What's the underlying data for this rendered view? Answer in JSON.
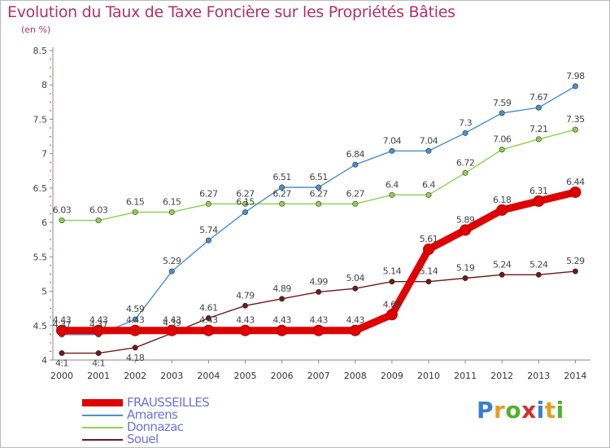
{
  "chart_data": {
    "type": "line",
    "title": "Evolution du Taux de Taxe Foncière sur les Propriétés Bâties",
    "unit_label": "(en %)",
    "x": [
      "2000",
      "2001",
      "2002",
      "2003",
      "2004",
      "2005",
      "2006",
      "2007",
      "2008",
      "2009",
      "2010",
      "2011",
      "2012",
      "2013",
      "2014"
    ],
    "ylim": [
      4,
      8.5
    ],
    "yticks": [
      "4",
      "4.5",
      "5",
      "5.5",
      "6",
      "6.5",
      "7",
      "7.5",
      "8",
      "8.5"
    ],
    "grid": false,
    "legend_position": "bottom-left",
    "series": [
      {
        "name": "FRAUSSEILLES",
        "color": "#e00000",
        "values": [
          4.43,
          4.43,
          4.43,
          4.43,
          4.43,
          4.43,
          4.43,
          4.43,
          4.43,
          4.66,
          5.61,
          5.89,
          6.18,
          6.31,
          6.44
        ],
        "labels": [
          "4.43",
          "4.43",
          "4.43",
          "4.43",
          "4.43",
          "4.43",
          "4.43",
          "4.43",
          "4.43",
          "4.66",
          "5.61",
          "5.89",
          "6.18",
          "6.31",
          "6.44"
        ]
      },
      {
        "name": "Amarens",
        "color": "#4a90c8",
        "values": [
          4.37,
          4.37,
          4.59,
          5.29,
          5.74,
          6.15,
          6.51,
          6.51,
          6.84,
          7.04,
          7.04,
          7.3,
          7.59,
          7.67,
          7.98
        ],
        "labels": [
          "4.37",
          "4.37",
          "4.59",
          "5.29",
          "5.74",
          "6.15",
          "6.51",
          "6.51",
          "6.84",
          "7.04",
          "7.04",
          "7.3",
          "7.59",
          "7.67",
          "7.98"
        ]
      },
      {
        "name": "Donnazac",
        "color": "#8dd050",
        "values": [
          6.03,
          6.03,
          6.15,
          6.15,
          6.27,
          6.27,
          6.27,
          6.27,
          6.27,
          6.4,
          6.4,
          6.72,
          7.06,
          7.21,
          7.35
        ],
        "labels": [
          "6.03",
          "6.03",
          "6.15",
          "6.15",
          "6.27",
          "6.27",
          "6.27",
          "6.27",
          "6.27",
          "6.4",
          "6.4",
          "6.72",
          "7.06",
          "7.21",
          "7.35"
        ]
      },
      {
        "name": "Souel",
        "color": "#6b1a1a",
        "values": [
          4.1,
          4.1,
          4.18,
          4.39,
          4.61,
          4.79,
          4.89,
          4.99,
          5.04,
          5.14,
          5.14,
          5.19,
          5.24,
          5.24,
          5.29
        ],
        "labels": [
          "4.1",
          "4.1",
          "4.18",
          "4.39",
          "4.61",
          "4.79",
          "4.89",
          "4.99",
          "5.04",
          "5.14",
          "5.14",
          "5.19",
          "5.24",
          "5.24",
          "5.29"
        ]
      }
    ]
  },
  "legend": {
    "items": [
      {
        "label": "FRAUSSEILLES",
        "color": "#e00000",
        "text_color": "#6f6fe0"
      },
      {
        "label": "Amarens",
        "color": "#4a90c8",
        "text_color": "#6f6fe0"
      },
      {
        "label": "Donnazac",
        "color": "#8dd050",
        "text_color": "#6f6fe0"
      },
      {
        "label": "Souel",
        "color": "#6b1a1a",
        "text_color": "#6f6fe0"
      }
    ]
  },
  "logo": {
    "letters": [
      "P",
      "r",
      "o",
      "x",
      "i",
      "t",
      "i"
    ],
    "colors": [
      "#3a7fd0",
      "#e0a020",
      "#50b030",
      "#d03030",
      "#3a7fd0",
      "#e0a020",
      "#50b030"
    ]
  }
}
